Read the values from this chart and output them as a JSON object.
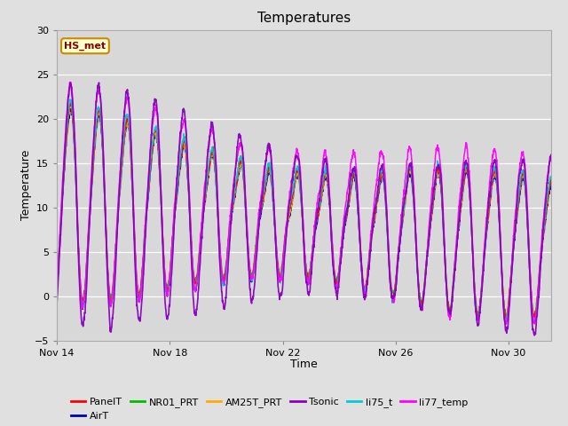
{
  "title": "Temperatures",
  "xlabel": "Time",
  "ylabel": "Temperature",
  "ylim": [
    -5,
    30
  ],
  "yticks": [
    -5,
    0,
    5,
    10,
    15,
    20,
    25,
    30
  ],
  "xtick_labels": [
    "Nov 14",
    "Nov 18",
    "Nov 22",
    "Nov 26",
    "Nov 30"
  ],
  "xtick_positions": [
    0,
    4,
    8,
    12,
    16
  ],
  "total_days": 17.5,
  "fig_bg_color": "#e0e0e0",
  "plot_bg_color": "#d8d8d8",
  "grid_color": "#ffffff",
  "series_colors": {
    "PanelT": "#ff0000",
    "AirT": "#0000bb",
    "NR01_PRT": "#00bb00",
    "AM25T_PRT": "#ffaa00",
    "Tsonic": "#8800bb",
    "li75_t": "#00cccc",
    "li77_temp": "#ff00ff"
  },
  "series_order": [
    "PanelT",
    "AirT",
    "NR01_PRT",
    "AM25T_PRT",
    "Tsonic",
    "li75_t",
    "li77_temp"
  ],
  "annotation_text": "HS_met",
  "n_points": 2040,
  "seed": 7
}
